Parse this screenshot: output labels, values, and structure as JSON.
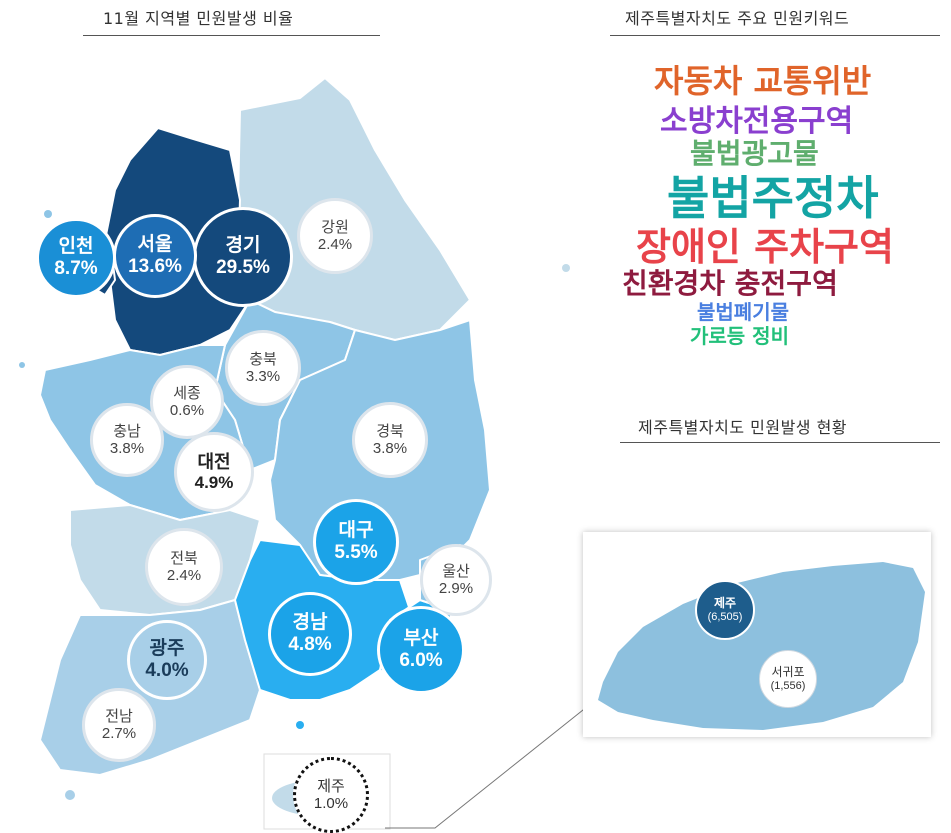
{
  "titles": {
    "ratio": "11월 지역별 민원발생 비율",
    "keywords": "제주특별자치도 주요 민원키워드",
    "jeju_status": "제주특별자치도 민원발생 현황"
  },
  "regions": [
    {
      "id": "gyeonggi",
      "name": "경기",
      "pct": "29.5%",
      "color": "#14497c"
    },
    {
      "id": "seoul",
      "name": "서울",
      "pct": "13.6%",
      "color": "#1e6db4"
    },
    {
      "id": "incheon",
      "name": "인천",
      "pct": "8.7%",
      "color": "#1a8fd6"
    },
    {
      "id": "gangwon",
      "name": "강원",
      "pct": "2.4%",
      "color": "#ffffff"
    },
    {
      "id": "chungbuk",
      "name": "충북",
      "pct": "3.3%",
      "color": "#ffffff"
    },
    {
      "id": "sejong",
      "name": "세종",
      "pct": "0.6%",
      "color": "#ffffff"
    },
    {
      "id": "chungnam",
      "name": "충남",
      "pct": "3.8%",
      "color": "#ffffff"
    },
    {
      "id": "daejeon",
      "name": "대전",
      "pct": "4.9%",
      "color": "#ffffff"
    },
    {
      "id": "gyeongbuk",
      "name": "경북",
      "pct": "3.8%",
      "color": "#ffffff"
    },
    {
      "id": "daegu",
      "name": "대구",
      "pct": "5.5%",
      "color": "#1ba3e8"
    },
    {
      "id": "ulsan",
      "name": "울산",
      "pct": "2.9%",
      "color": "#ffffff"
    },
    {
      "id": "jeonbuk",
      "name": "전북",
      "pct": "2.4%",
      "color": "#ffffff"
    },
    {
      "id": "gyeongnam",
      "name": "경남",
      "pct": "4.8%",
      "color": "#1ba3e8"
    },
    {
      "id": "busan",
      "name": "부산",
      "pct": "6.0%",
      "color": "#1ba3e8"
    },
    {
      "id": "gwangju",
      "name": "광주",
      "pct": "4.0%",
      "color": "#a8cfe8"
    },
    {
      "id": "jeonnam",
      "name": "전남",
      "pct": "2.7%",
      "color": "#ffffff"
    },
    {
      "id": "jeju",
      "name": "제주",
      "pct": "1.0%",
      "color": "#ffffff"
    }
  ],
  "keywords": [
    {
      "text": "자동차 교통위반",
      "color": "#e0642a"
    },
    {
      "text": "소방차전용구역",
      "color": "#8a3fcf"
    },
    {
      "text": "불법광고물",
      "color": "#5fae6e"
    },
    {
      "text": "불법주정차",
      "color": "#13a4a4"
    },
    {
      "text": "장애인 주차구역",
      "color": "#e8434a"
    },
    {
      "text": "친환경차 충전구역",
      "color": "#8e1b3f"
    },
    {
      "text": "불법폐기물",
      "color": "#4a7fe0"
    },
    {
      "text": "가로등 정비",
      "color": "#22c07a"
    }
  ],
  "jeju_cities": [
    {
      "name": "제주",
      "count": "(6,505)"
    },
    {
      "name": "서귀포",
      "count": "(1,556)"
    }
  ],
  "map_colors": {
    "capital": "#14497c",
    "light": "#c2dbe9",
    "mid": "#8ec5e6",
    "bright": "#29aef0",
    "jeju": "#8dc0de",
    "border": "#ffffff"
  }
}
